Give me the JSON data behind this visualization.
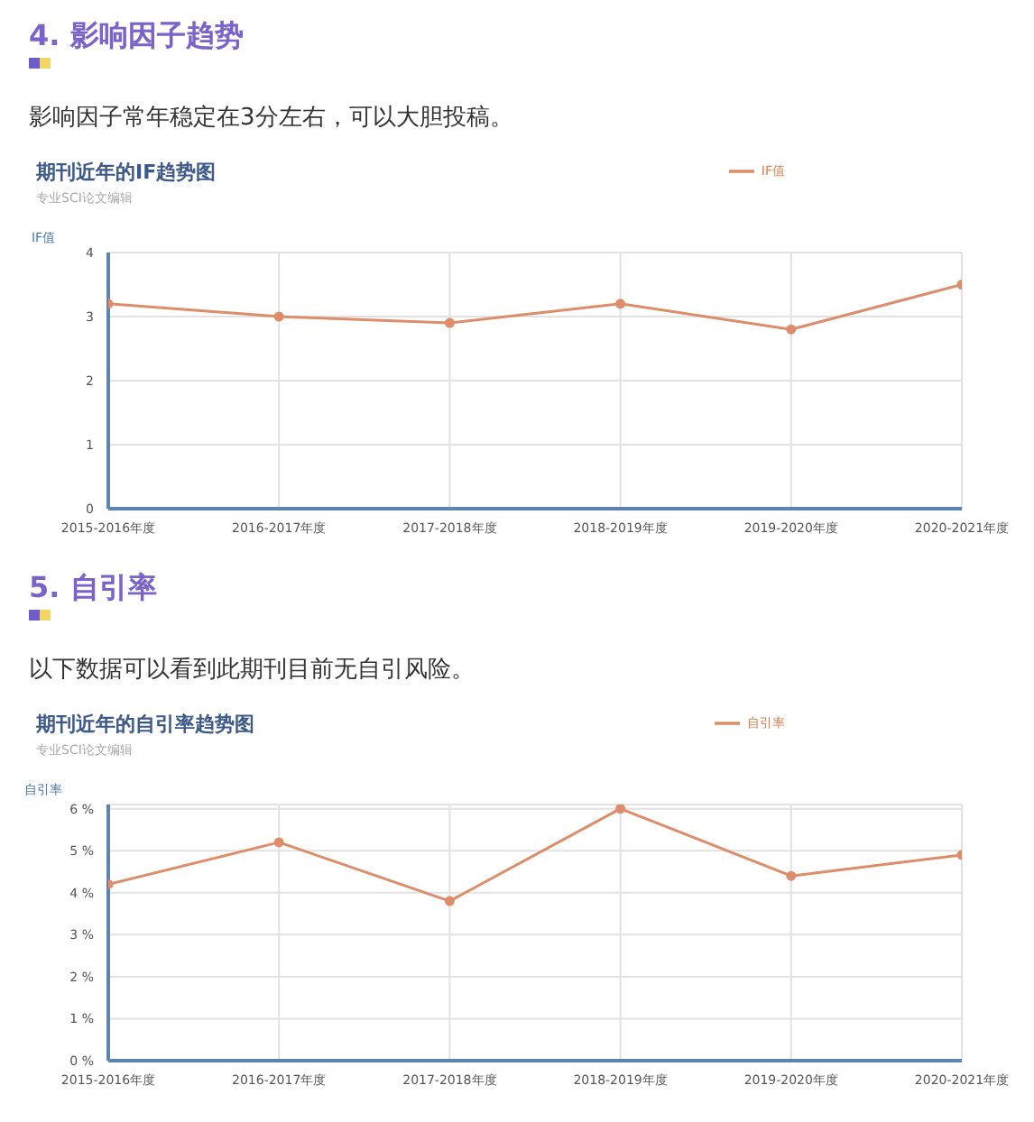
{
  "chart_data": [
    {
      "type": "line",
      "title": "期刊近年的IF趋势图",
      "subtitle": "专业SCI论文编辑",
      "ylabel": "IF值",
      "annotations": [
        "4. 影响因子趋势",
        "影响因子常年稳定在3分左右，可以大胆投稿。"
      ],
      "categories": [
        "2015-2016年度",
        "2016-2017年度",
        "2017-2018年度",
        "2018-2019年度",
        "2019-2020年度",
        "2020-2021年度"
      ],
      "series": [
        {
          "name": "IF值",
          "color": "#de8d6a",
          "values": [
            3.2,
            3.0,
            2.9,
            3.2,
            2.8,
            3.5
          ]
        }
      ],
      "ylim": [
        0,
        4
      ],
      "yticks": [
        0,
        1,
        2,
        3,
        4
      ],
      "grid": true,
      "legend": "top right",
      "marker": "circle"
    },
    {
      "type": "line",
      "title": "期刊近年的自引率趋势图",
      "subtitle": "专业SCI论文编辑",
      "ylabel": "自引率",
      "annotations": [
        "5. 自引率",
        "以下数据可以看到此期刊目前无自引风险。"
      ],
      "categories": [
        "2015-2016年度",
        "2016-2017年度",
        "2017-2018年度",
        "2018-2019年度",
        "2019-2020年度",
        "2020-2021年度"
      ],
      "series": [
        {
          "name": "自引率",
          "color": "#de8d6a",
          "values": [
            4.2,
            5.2,
            3.8,
            6.0,
            4.4,
            4.9
          ]
        }
      ],
      "ylim": [
        0,
        6.1
      ],
      "yticks": [
        {
          "value": 0,
          "label": "0 %"
        },
        {
          "value": 1,
          "label": "1 %"
        },
        {
          "value": 2,
          "label": "2 %"
        },
        {
          "value": 3,
          "label": "3 %"
        },
        {
          "value": 4,
          "label": "4 %"
        },
        {
          "value": 5,
          "label": "5 %"
        },
        {
          "value": 6,
          "label": "6 %"
        }
      ],
      "grid": true,
      "legend": "top right",
      "marker": "circle"
    }
  ]
}
